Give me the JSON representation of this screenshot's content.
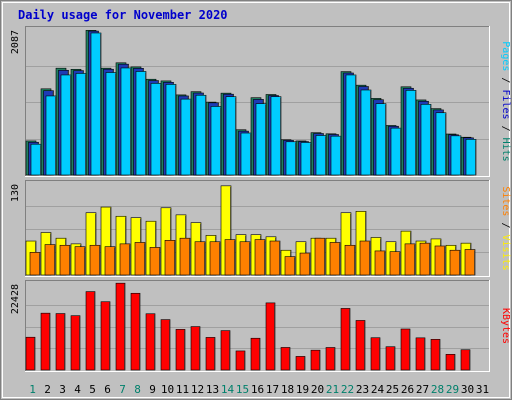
{
  "chart_data": {
    "type": "bar",
    "title": "Daily usage for November 2020",
    "days": [
      "1",
      "2",
      "3",
      "4",
      "5",
      "6",
      "7",
      "8",
      "9",
      "10",
      "11",
      "12",
      "13",
      "14",
      "15",
      "16",
      "17",
      "18",
      "19",
      "20",
      "21",
      "22",
      "23",
      "24",
      "25",
      "26",
      "27",
      "28",
      "29",
      "30",
      "31"
    ],
    "weekend_days": [
      "1",
      "7",
      "8",
      "14",
      "15",
      "21",
      "22",
      "28",
      "29"
    ],
    "panels": [
      {
        "id": "hits",
        "ymax": 2087,
        "ymax_label": "2087",
        "right_label_parts": [
          {
            "text": "Pages",
            "color": "#00ccff"
          },
          {
            "text": " / ",
            "color": "#000000"
          },
          {
            "text": "Files",
            "color": "#0000cc"
          },
          {
            "text": " / ",
            "color": "#000000"
          },
          {
            "text": "Hits",
            "color": "#00806b"
          }
        ],
        "series": [
          {
            "name": "Hits",
            "color": "#208060",
            "values": [
              487,
              1232,
              1527,
              1511,
              2068,
              1527,
              1604,
              1545,
              1369,
              1345,
              1145,
              1191,
              1042,
              1170,
              647,
              1105,
              1151,
              504,
              487,
              605,
              589,
              1478,
              1284,
              1095,
              708,
              1261,
              1073,
              949,
              586,
              540,
              null
            ]
          },
          {
            "name": "Files",
            "color": "#1e3ab5",
            "values": [
              468,
              1205,
              1497,
              1492,
              2057,
              1512,
              1584,
              1525,
              1350,
              1325,
              1130,
              1172,
              1032,
              1155,
              627,
              1081,
              1136,
              495,
              478,
              593,
              579,
              1458,
              1265,
              1076,
              697,
              1240,
              1054,
              930,
              575,
              531,
              null
            ]
          },
          {
            "name": "Pages",
            "color": "#00ccff",
            "values": [
              440,
              1130,
              1430,
              1452,
              2030,
              1465,
              1530,
              1480,
              1310,
              1295,
              1085,
              1140,
              980,
              1120,
              600,
              1020,
              1120,
              475,
              465,
              565,
              555,
              1430,
              1215,
              1020,
              670,
              1210,
              1010,
              890,
              560,
              510,
              null
            ]
          }
        ]
      },
      {
        "id": "visits",
        "ymax": 130,
        "ymax_label": "130",
        "right_label_parts": [
          {
            "text": "Sites",
            "color": "#ff8000"
          },
          {
            "text": " / ",
            "color": "#000000"
          },
          {
            "text": "Visits",
            "color": "#ffee00"
          }
        ],
        "series": [
          {
            "name": "Visits",
            "color": "#ffff00",
            "values": [
              48,
              60,
              52,
              44,
              88,
              96,
              83,
              81,
              76,
              95,
              85,
              74,
              56,
              126,
              57,
              57,
              54,
              35,
              47,
              52,
              52,
              88,
              90,
              53,
              47,
              62,
              48,
              51,
              42,
              45,
              null
            ]
          },
          {
            "name": "Sites",
            "color": "#ff8000",
            "values": [
              32,
              43,
              42,
              40,
              42,
              40,
              44,
              46,
              39,
              49,
              52,
              47,
              47,
              50,
              47,
              50,
              48,
              26,
              31,
              52,
              46,
              42,
              48,
              34,
              33,
              44,
              45,
              41,
              35,
              36,
              null
            ]
          }
        ]
      },
      {
        "id": "kbytes",
        "ymax": 22428,
        "ymax_label": "22428",
        "right_label_parts": [
          {
            "text": "KBytes",
            "color": "#ff0000"
          }
        ],
        "series": [
          {
            "name": "KBytes",
            "color": "#ff0000",
            "values": [
              8450,
              14650,
              14550,
              14000,
              20210,
              17600,
              22380,
              19780,
              14500,
              12990,
              10470,
              11190,
              8400,
              10150,
              4910,
              8190,
              17300,
              5810,
              3500,
              5110,
              5800,
              15870,
              12770,
              8320,
              6000,
              10570,
              8290,
              7900,
              4040,
              5220,
              null
            ]
          }
        ]
      }
    ]
  }
}
